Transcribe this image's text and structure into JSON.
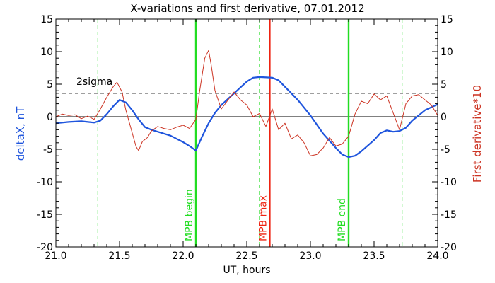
{
  "chart_data": {
    "type": "line",
    "title": "X-variations and first derivative, 07.01.2012",
    "xlabel": "UT, hours",
    "ylabel_left": "deltaX, nT",
    "ylabel_right": "First derivative*10",
    "xlim": [
      21.0,
      24.0
    ],
    "ylim": [
      -20,
      15
    ],
    "xticks": [
      "21.0",
      "21.5",
      "22.0",
      "22.5",
      "23.0",
      "23.5",
      "24.0"
    ],
    "yticks": [
      "15",
      "10",
      "5",
      "0",
      "-5",
      "-10",
      "-15",
      "-20"
    ],
    "colors": {
      "deltaX": "#1f55dd",
      "derivative": "#cc3322",
      "mpb_green": "#22dd22",
      "mpb_red": "#ee2211"
    },
    "sigma": {
      "label": "2sigma",
      "value": 3.6
    },
    "vertical_lines": [
      {
        "x": 21.33,
        "style": "dashed",
        "color": "#22dd22",
        "label": ""
      },
      {
        "x": 22.1,
        "style": "solid",
        "color": "#22dd22",
        "label": "MPB begin"
      },
      {
        "x": 22.6,
        "style": "dashed",
        "color": "#22dd22",
        "label": ""
      },
      {
        "x": 22.68,
        "style": "solid",
        "color": "#ee2211",
        "label": "MPB max"
      },
      {
        "x": 23.3,
        "style": "solid",
        "color": "#22dd22",
        "label": "MPB end"
      },
      {
        "x": 23.72,
        "style": "dashed",
        "color": "#22dd22",
        "label": ""
      }
    ],
    "series": [
      {
        "key": "deltaX",
        "x": [
          21.0,
          21.1,
          21.2,
          21.3,
          21.35,
          21.4,
          21.45,
          21.5,
          21.55,
          21.6,
          21.65,
          21.7,
          21.75,
          21.8,
          21.9,
          22.0,
          22.05,
          22.1,
          22.15,
          22.2,
          22.25,
          22.3,
          22.4,
          22.5,
          22.55,
          22.6,
          22.7,
          22.75,
          22.8,
          22.9,
          23.0,
          23.1,
          23.2,
          23.25,
          23.3,
          23.35,
          23.4,
          23.5,
          23.55,
          23.6,
          23.65,
          23.7,
          23.75,
          23.8,
          23.9,
          24.0
        ],
        "y": [
          -1.0,
          -0.8,
          -0.7,
          -0.9,
          -0.6,
          0.4,
          1.6,
          2.6,
          2.2,
          1.0,
          -0.4,
          -1.6,
          -2.0,
          -2.3,
          -2.9,
          -3.9,
          -4.5,
          -5.2,
          -3.0,
          -1.0,
          0.6,
          1.8,
          3.6,
          5.4,
          6.0,
          6.1,
          6.0,
          5.6,
          4.6,
          2.6,
          0.2,
          -2.6,
          -4.8,
          -5.8,
          -6.2,
          -6.0,
          -5.3,
          -3.6,
          -2.5,
          -2.1,
          -2.3,
          -2.2,
          -1.7,
          -0.6,
          1.0,
          1.9
        ]
      },
      {
        "key": "derivative",
        "x": [
          21.0,
          21.05,
          21.1,
          21.15,
          21.2,
          21.25,
          21.3,
          21.35,
          21.4,
          21.45,
          21.48,
          21.52,
          21.55,
          21.6,
          21.63,
          21.65,
          21.68,
          21.72,
          21.75,
          21.8,
          21.85,
          21.9,
          21.95,
          22.0,
          22.05,
          22.1,
          22.13,
          22.17,
          22.2,
          22.22,
          22.25,
          22.3,
          22.35,
          22.4,
          22.45,
          22.5,
          22.55,
          22.6,
          22.65,
          22.7,
          22.75,
          22.8,
          22.85,
          22.9,
          22.95,
          23.0,
          23.05,
          23.1,
          23.15,
          23.2,
          23.25,
          23.3,
          23.35,
          23.4,
          23.45,
          23.5,
          23.55,
          23.6,
          23.65,
          23.7,
          23.75,
          23.8,
          23.85,
          23.9,
          23.95,
          24.0
        ],
        "y": [
          0.0,
          0.4,
          0.2,
          0.3,
          -0.3,
          0.1,
          -0.4,
          1.2,
          3.0,
          4.6,
          5.3,
          3.8,
          1.0,
          -2.5,
          -4.6,
          -5.2,
          -3.8,
          -3.2,
          -2.2,
          -1.5,
          -1.8,
          -2.0,
          -1.6,
          -1.3,
          -1.8,
          -0.4,
          4.0,
          9.0,
          10.2,
          8.0,
          4.0,
          1.2,
          2.5,
          3.8,
          2.6,
          1.8,
          0.0,
          0.5,
          -1.5,
          1.2,
          -2.0,
          -1.0,
          -3.4,
          -2.8,
          -4.0,
          -6.0,
          -5.8,
          -4.8,
          -3.2,
          -4.5,
          -4.2,
          -3.0,
          0.4,
          2.4,
          2.0,
          3.5,
          2.6,
          3.2,
          0.6,
          -2.0,
          2.0,
          3.2,
          3.4,
          2.6,
          1.8,
          0.2
        ]
      }
    ],
    "annotations": [
      "2sigma"
    ]
  }
}
